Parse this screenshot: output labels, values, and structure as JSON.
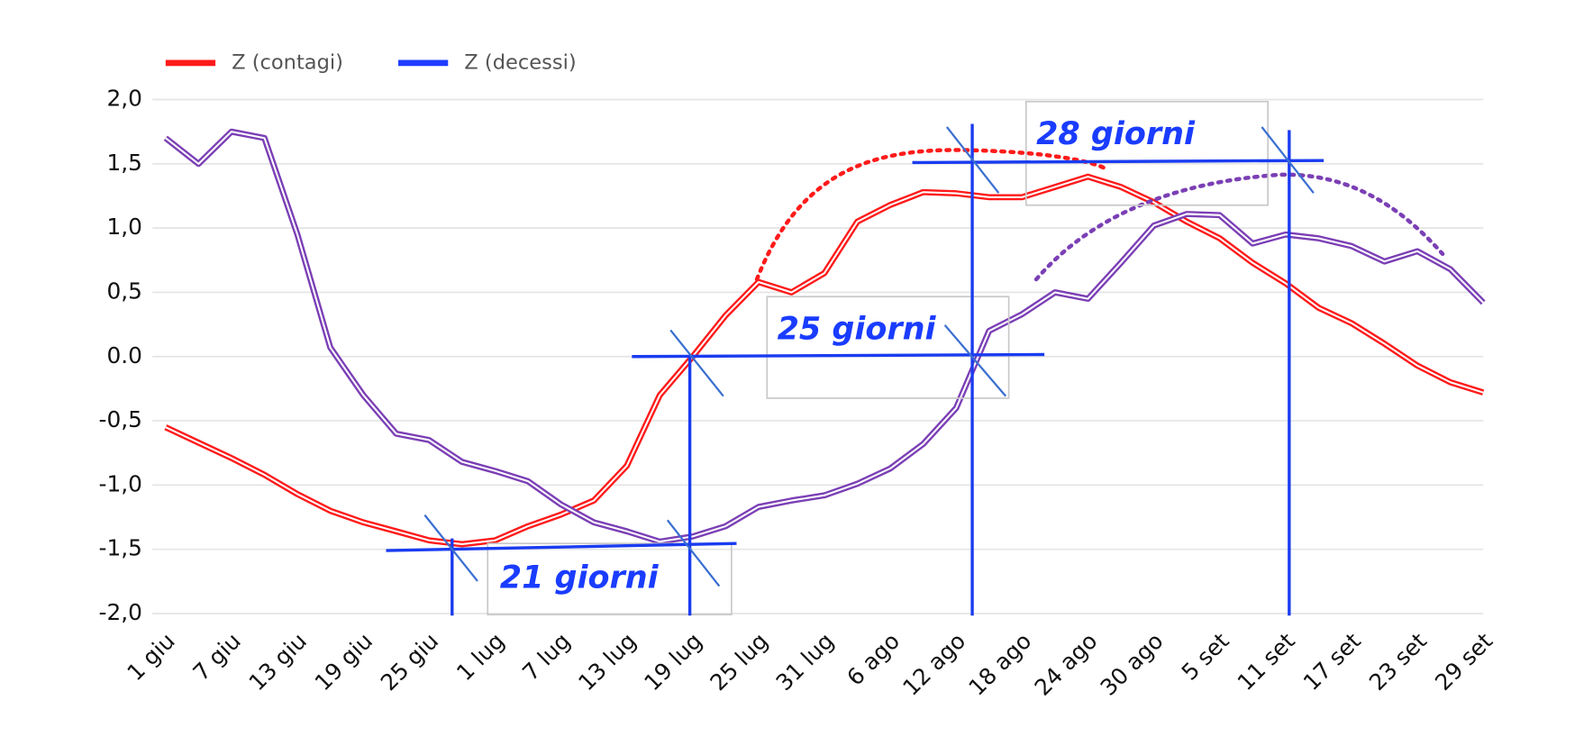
{
  "chart_data": {
    "type": "line",
    "categories": [
      "1 giu",
      null,
      "7 giu",
      null,
      "13 giu",
      null,
      "19 giu",
      null,
      "25 giu",
      null,
      "1 lug",
      null,
      "7 lug",
      null,
      "13 lug",
      null,
      "19 lug",
      null,
      "25 lug",
      null,
      "31 lug",
      null,
      "6 ago",
      null,
      "12 ago",
      null,
      "18 ago",
      null,
      "24 ago",
      null,
      "30 ago",
      null,
      "5 set",
      null,
      "11 set",
      null,
      "17 set",
      null,
      "23 set",
      null,
      "29 set"
    ],
    "series": [
      {
        "name": "Z (contagi)",
        "color": "#ff1a1a",
        "values": [
          -0.55,
          -0.67,
          -0.79,
          -0.92,
          -1.07,
          -1.2,
          -1.29,
          -1.36,
          -1.43,
          -1.46,
          -1.43,
          -1.32,
          -1.23,
          -1.12,
          -0.85,
          -0.3,
          0.0,
          0.32,
          0.58,
          0.5,
          0.65,
          1.05,
          1.18,
          1.28,
          1.27,
          1.24,
          1.24,
          1.32,
          1.4,
          1.32,
          1.2,
          1.05,
          0.92,
          0.73,
          0.57,
          0.38,
          0.26,
          0.1,
          -0.07,
          -0.2,
          -0.28
        ]
      },
      {
        "name": "Z (decessi)",
        "color": "#1f3cff",
        "line_color": "#7b3fb5",
        "values": [
          1.7,
          1.5,
          1.75,
          1.7,
          0.95,
          0.07,
          -0.3,
          -0.6,
          -0.65,
          -0.82,
          -0.89,
          -0.97,
          -1.15,
          -1.29,
          -1.36,
          -1.44,
          -1.4,
          -1.32,
          -1.17,
          -1.12,
          -1.08,
          -0.99,
          -0.87,
          -0.68,
          -0.4,
          0.2,
          0.33,
          0.5,
          0.45,
          0.73,
          1.02,
          1.11,
          1.1,
          0.88,
          0.95,
          0.92,
          0.86,
          0.74,
          0.82,
          0.68,
          0.42
        ]
      }
    ],
    "ylim": [
      -2,
      2
    ],
    "yticks": [
      {
        "value": 2,
        "label": "2,0"
      },
      {
        "value": 1.5,
        "label": "1,5"
      },
      {
        "value": 1,
        "label": "1,0"
      },
      {
        "value": 0.5,
        "label": "0,5"
      },
      {
        "value": 0,
        "label": "0.0"
      },
      {
        "value": -0.5,
        "label": "-0,5"
      },
      {
        "value": -1,
        "label": "-1,0"
      },
      {
        "value": -1.5,
        "label": "-1,5"
      },
      {
        "value": -2,
        "label": "-2,0"
      }
    ],
    "grid": true,
    "legend": "top-left",
    "annotations": [
      "21 giorni",
      "25 giorni",
      "28 giorni"
    ]
  }
}
